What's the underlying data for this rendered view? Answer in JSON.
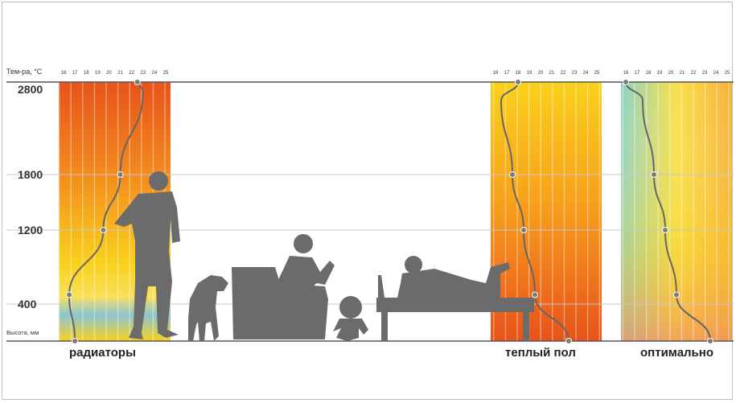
{
  "chart_data": {
    "type": "line",
    "x_axis_title": "Тем-ра, °С",
    "y_axis_title": "Высота, мм",
    "x_ticks": [
      "16",
      "17",
      "18",
      "19",
      "20",
      "21",
      "22",
      "23",
      "24",
      "25"
    ],
    "y_ticks": [
      2800,
      1800,
      1200,
      400
    ],
    "y_range": [
      0,
      2800
    ],
    "x_range": [
      16,
      25
    ],
    "colors": {
      "curve": "#666666",
      "silhouette": "#6b6b6b",
      "grid": "#c8c8c8",
      "warm_dark": "#e8521b",
      "warm_mid": "#f7a21c",
      "warm_light": "#f9d11c",
      "cool": "#8cc5d2"
    },
    "panels": [
      {
        "name": "радиаторы",
        "x": [
          22.5,
          23.0,
          21.0,
          19.5,
          16.5,
          17.0
        ],
        "y": [
          2800,
          2700,
          1800,
          1200,
          500,
          0
        ]
      },
      {
        "name": "теплый пол",
        "x": [
          18.0,
          16.5,
          17.5,
          18.5,
          19.5,
          22.5
        ],
        "y": [
          2800,
          2600,
          1800,
          1200,
          500,
          0
        ]
      },
      {
        "name": "оптимально",
        "x": [
          16.0,
          17.5,
          18.5,
          19.5,
          20.5,
          23.5
        ],
        "y": [
          2800,
          2600,
          1800,
          1200,
          500,
          0
        ]
      }
    ],
    "markers": {
      "радиаторы": [
        [
          22.5,
          2800
        ],
        [
          21.0,
          1800
        ],
        [
          19.5,
          1200
        ],
        [
          16.5,
          500
        ],
        [
          17.0,
          0
        ]
      ],
      "теплый пол": [
        [
          18.0,
          2800
        ],
        [
          17.5,
          1800
        ],
        [
          18.5,
          1200
        ],
        [
          19.5,
          500
        ],
        [
          22.5,
          0
        ]
      ],
      "оптимально": [
        [
          16.0,
          2800
        ],
        [
          18.5,
          1800
        ],
        [
          19.5,
          1200
        ],
        [
          20.5,
          500
        ],
        [
          23.5,
          0
        ]
      ]
    },
    "silhouettes": [
      "adult-standing",
      "dog",
      "person-in-armchair",
      "baby",
      "person-lying-on-bench"
    ],
    "grid": true
  }
}
